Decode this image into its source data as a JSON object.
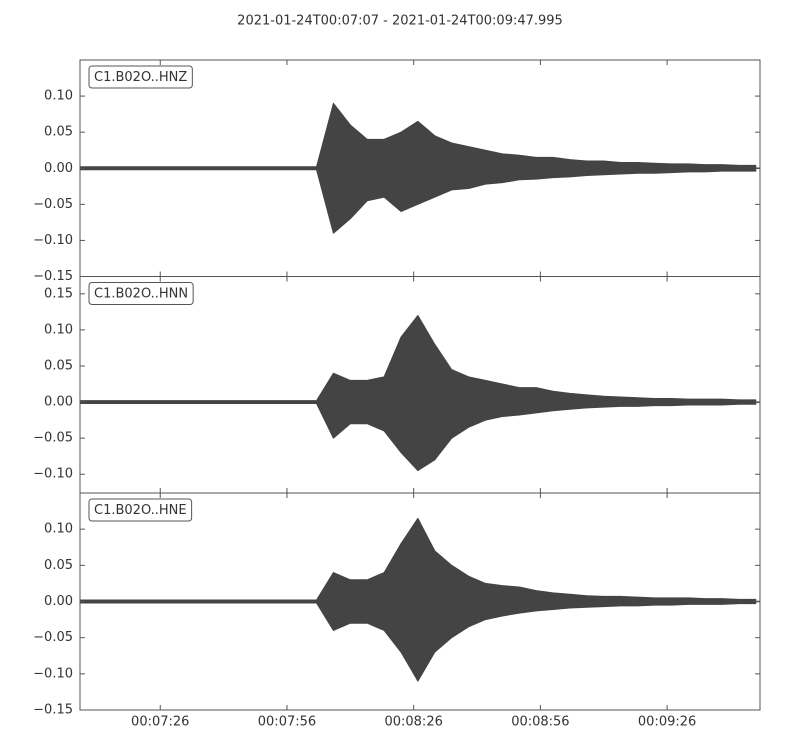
{
  "title": "2021-01-24T00:07:07  -  2021-01-24T00:09:47.995",
  "chart_data": [
    {
      "type": "seismogram",
      "label": "C1.B02O..HNZ",
      "color": "#444444",
      "x": [
        "00:07:07",
        "00:07:11",
        "00:07:15",
        "00:07:19",
        "00:07:23",
        "00:07:27",
        "00:07:31",
        "00:07:35",
        "00:07:39",
        "00:07:43",
        "00:07:47",
        "00:07:51",
        "00:07:55",
        "00:07:59",
        "00:08:03",
        "00:08:07",
        "00:08:11",
        "00:08:15",
        "00:08:19",
        "00:08:23",
        "00:08:27",
        "00:08:31",
        "00:08:35",
        "00:08:39",
        "00:08:43",
        "00:08:47",
        "00:08:51",
        "00:08:55",
        "00:08:59",
        "00:09:03",
        "00:09:07",
        "00:09:11",
        "00:09:15",
        "00:09:19",
        "00:09:23",
        "00:09:27",
        "00:09:31",
        "00:09:35",
        "00:09:39",
        "00:09:43",
        "00:09:47"
      ],
      "upper": [
        0.002,
        0.002,
        0.002,
        0.002,
        0.002,
        0.002,
        0.002,
        0.002,
        0.002,
        0.002,
        0.002,
        0.002,
        0.002,
        0.002,
        0.002,
        0.09,
        0.06,
        0.04,
        0.04,
        0.05,
        0.065,
        0.045,
        0.035,
        0.03,
        0.025,
        0.02,
        0.018,
        0.015,
        0.015,
        0.012,
        0.01,
        0.01,
        0.008,
        0.008,
        0.007,
        0.006,
        0.006,
        0.005,
        0.005,
        0.004,
        0.004
      ],
      "lower": [
        -0.002,
        -0.002,
        -0.002,
        -0.002,
        -0.002,
        -0.002,
        -0.002,
        -0.002,
        -0.002,
        -0.002,
        -0.002,
        -0.002,
        -0.002,
        -0.002,
        -0.002,
        -0.09,
        -0.07,
        -0.045,
        -0.04,
        -0.06,
        -0.05,
        -0.04,
        -0.03,
        -0.028,
        -0.022,
        -0.02,
        -0.016,
        -0.015,
        -0.013,
        -0.012,
        -0.01,
        -0.009,
        -0.008,
        -0.007,
        -0.007,
        -0.006,
        -0.005,
        -0.005,
        -0.004,
        -0.004,
        -0.004
      ],
      "xlim": [
        "00:07:07",
        "00:09:47.995"
      ],
      "xticks": [
        "00:07:26",
        "00:07:56",
        "00:08:26",
        "00:08:56",
        "00:09:26"
      ],
      "ylim": [
        -0.15,
        0.15
      ],
      "yticks": [
        {
          "value": 0.1,
          "label": "0.10"
        },
        {
          "value": 0.05,
          "label": "0.05"
        },
        {
          "value": 0,
          "label": "0.00"
        },
        {
          "value": -0.05,
          "label": "−0.05"
        },
        {
          "value": -0.1,
          "label": "−0.10"
        },
        {
          "value": -0.15,
          "label": "−0.15"
        }
      ]
    },
    {
      "type": "seismogram",
      "label": "C1.B02O..HNN",
      "color": "#444444",
      "x": [
        "00:07:07",
        "00:07:11",
        "00:07:15",
        "00:07:19",
        "00:07:23",
        "00:07:27",
        "00:07:31",
        "00:07:35",
        "00:07:39",
        "00:07:43",
        "00:07:47",
        "00:07:51",
        "00:07:55",
        "00:07:59",
        "00:08:03",
        "00:08:07",
        "00:08:11",
        "00:08:15",
        "00:08:19",
        "00:08:23",
        "00:08:27",
        "00:08:31",
        "00:08:35",
        "00:08:39",
        "00:08:43",
        "00:08:47",
        "00:08:51",
        "00:08:55",
        "00:08:59",
        "00:09:03",
        "00:09:07",
        "00:09:11",
        "00:09:15",
        "00:09:19",
        "00:09:23",
        "00:09:27",
        "00:09:31",
        "00:09:35",
        "00:09:39",
        "00:09:43",
        "00:09:47"
      ],
      "upper": [
        0.002,
        0.002,
        0.002,
        0.002,
        0.002,
        0.002,
        0.002,
        0.002,
        0.002,
        0.002,
        0.002,
        0.002,
        0.002,
        0.002,
        0.002,
        0.04,
        0.03,
        0.03,
        0.035,
        0.09,
        0.12,
        0.08,
        0.045,
        0.035,
        0.03,
        0.025,
        0.02,
        0.02,
        0.015,
        0.012,
        0.01,
        0.008,
        0.007,
        0.006,
        0.005,
        0.005,
        0.004,
        0.004,
        0.004,
        0.003,
        0.003
      ],
      "lower": [
        -0.002,
        -0.002,
        -0.002,
        -0.002,
        -0.002,
        -0.002,
        -0.002,
        -0.002,
        -0.002,
        -0.002,
        -0.002,
        -0.002,
        -0.002,
        -0.002,
        -0.002,
        -0.05,
        -0.03,
        -0.03,
        -0.04,
        -0.07,
        -0.095,
        -0.08,
        -0.05,
        -0.035,
        -0.025,
        -0.02,
        -0.018,
        -0.015,
        -0.012,
        -0.01,
        -0.008,
        -0.007,
        -0.006,
        -0.006,
        -0.005,
        -0.005,
        -0.004,
        -0.004,
        -0.004,
        -0.003,
        -0.003
      ],
      "xlim": [
        "00:07:07",
        "00:09:47.995"
      ],
      "xticks": [
        "00:07:26",
        "00:07:56",
        "00:08:26",
        "00:08:56",
        "00:09:26"
      ],
      "ylim": [
        -0.126,
        0.174
      ],
      "yticks": [
        {
          "value": 0.15,
          "label": "0.15"
        },
        {
          "value": 0.1,
          "label": "0.10"
        },
        {
          "value": 0.05,
          "label": "0.05"
        },
        {
          "value": 0,
          "label": "0.00"
        },
        {
          "value": -0.05,
          "label": "−0.05"
        },
        {
          "value": -0.1,
          "label": "−0.10"
        }
      ]
    },
    {
      "type": "seismogram",
      "label": "C1.B02O..HNE",
      "color": "#444444",
      "x": [
        "00:07:07",
        "00:07:11",
        "00:07:15",
        "00:07:19",
        "00:07:23",
        "00:07:27",
        "00:07:31",
        "00:07:35",
        "00:07:39",
        "00:07:43",
        "00:07:47",
        "00:07:51",
        "00:07:55",
        "00:07:59",
        "00:08:03",
        "00:08:07",
        "00:08:11",
        "00:08:15",
        "00:08:19",
        "00:08:23",
        "00:08:27",
        "00:08:31",
        "00:08:35",
        "00:08:39",
        "00:08:43",
        "00:08:47",
        "00:08:51",
        "00:08:55",
        "00:08:59",
        "00:09:03",
        "00:09:07",
        "00:09:11",
        "00:09:15",
        "00:09:19",
        "00:09:23",
        "00:09:27",
        "00:09:31",
        "00:09:35",
        "00:09:39",
        "00:09:43",
        "00:09:47"
      ],
      "upper": [
        0.002,
        0.002,
        0.002,
        0.002,
        0.002,
        0.002,
        0.002,
        0.002,
        0.002,
        0.002,
        0.002,
        0.002,
        0.002,
        0.002,
        0.002,
        0.04,
        0.03,
        0.03,
        0.04,
        0.08,
        0.115,
        0.07,
        0.05,
        0.035,
        0.025,
        0.022,
        0.02,
        0.015,
        0.012,
        0.01,
        0.008,
        0.007,
        0.007,
        0.006,
        0.005,
        0.005,
        0.005,
        0.004,
        0.004,
        0.003,
        0.003
      ],
      "lower": [
        -0.002,
        -0.002,
        -0.002,
        -0.002,
        -0.002,
        -0.002,
        -0.002,
        -0.002,
        -0.002,
        -0.002,
        -0.002,
        -0.002,
        -0.002,
        -0.002,
        -0.002,
        -0.04,
        -0.03,
        -0.03,
        -0.04,
        -0.07,
        -0.11,
        -0.07,
        -0.05,
        -0.035,
        -0.025,
        -0.02,
        -0.016,
        -0.013,
        -0.011,
        -0.009,
        -0.008,
        -0.007,
        -0.006,
        -0.006,
        -0.005,
        -0.005,
        -0.004,
        -0.004,
        -0.004,
        -0.003,
        -0.003
      ],
      "xlim": [
        "00:07:07",
        "00:09:47.995"
      ],
      "xticks": [
        "00:07:26",
        "00:07:56",
        "00:08:26",
        "00:08:56",
        "00:09:26"
      ],
      "ylim": [
        -0.15,
        0.15
      ],
      "yticks": [
        {
          "value": 0.1,
          "label": "0.10"
        },
        {
          "value": 0.05,
          "label": "0.05"
        },
        {
          "value": 0,
          "label": "0.00"
        },
        {
          "value": -0.05,
          "label": "−0.05"
        },
        {
          "value": -0.1,
          "label": "−0.10"
        },
        {
          "value": -0.15,
          "label": "−0.15"
        }
      ]
    }
  ]
}
